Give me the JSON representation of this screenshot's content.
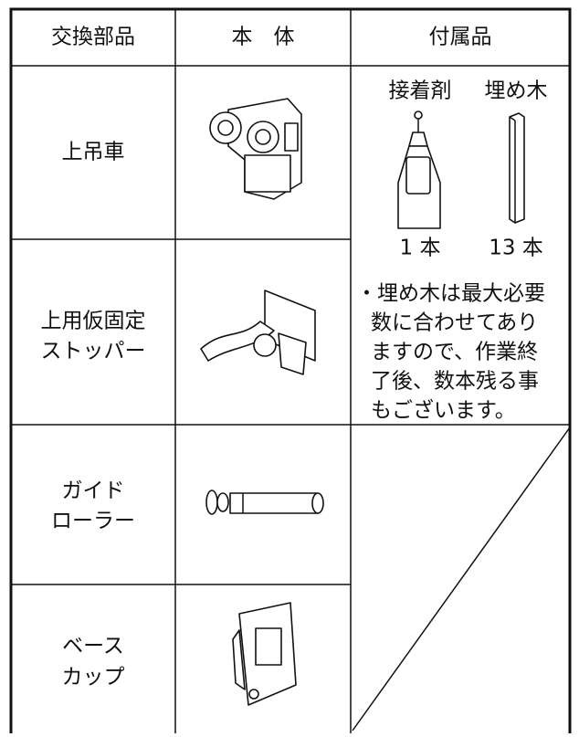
{
  "table": {
    "header": [
      "交換部品",
      "本　体",
      "付属品"
    ],
    "rows": [
      [
        "上吊車"
      ],
      [
        "上用仮固定",
        "ストッパー"
      ],
      [
        "ガイド",
        "ローラー"
      ],
      [
        "ベース",
        "カップ"
      ]
    ],
    "accessories": {
      "items": [
        {
          "name": "接着剤",
          "qty": "1 本"
        },
        {
          "name": "埋め木",
          "qty": "13 本"
        }
      ],
      "note": [
        "・埋め木は最大必要",
        "数に合わせてあり",
        "ますので、作業終",
        "了後、数本残る事",
        "もございます。"
      ]
    }
  }
}
